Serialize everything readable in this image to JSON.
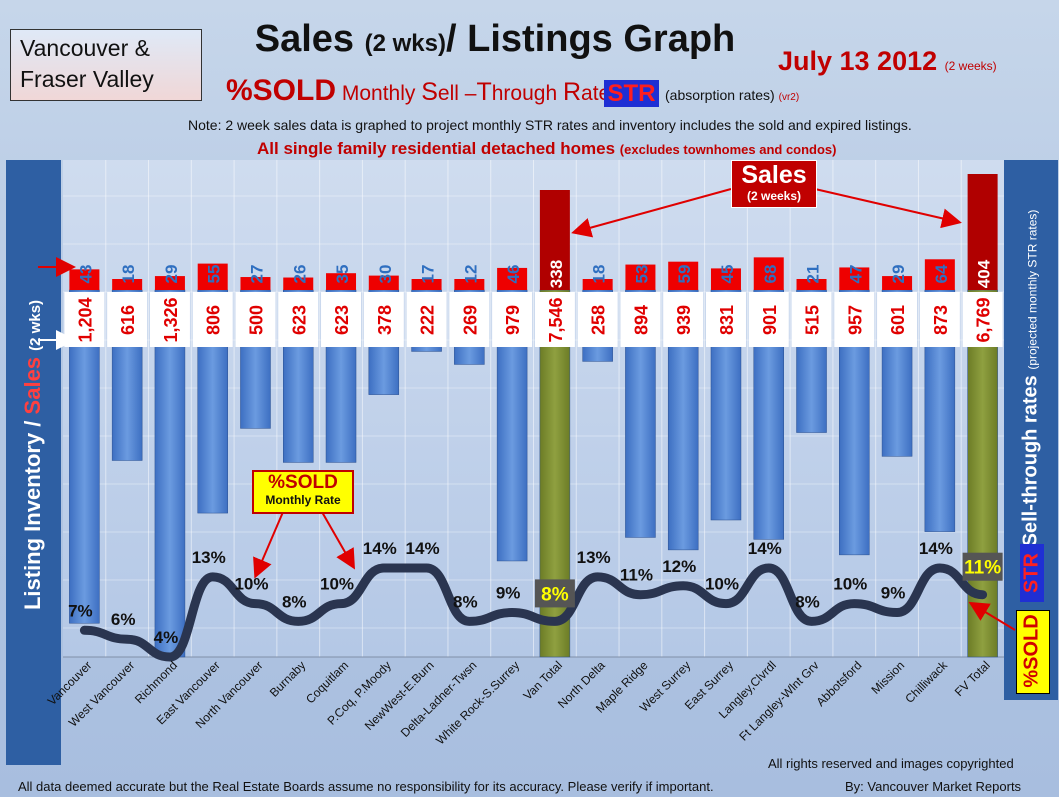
{
  "header": {
    "region_line1": "Vancouver &",
    "region_line2": "Fraser Valley",
    "title_main": "Sales",
    "title_paren": "(2 wks)",
    "title_rest": "/ Listings Graph",
    "date": "July 13 2012",
    "date_note": "(2 weeks)",
    "subtitle_pct": "%SOLD",
    "subtitle_a": "Monthly",
    "subtitle_S": "S",
    "subtitle_b": "ell –",
    "subtitle_T": "T",
    "subtitle_c": "hrough",
    "subtitle_R": "R",
    "subtitle_d": "ates",
    "str_badge": "STR",
    "absorption": "(absorption rates)",
    "absorption_ver": "(vr2)",
    "note": "Note: 2 week sales data is graphed to project monthly STR rates and inventory includes the sold and expired listings.",
    "scope": "All single family residential detached homes",
    "scope_note": "(excludes townhomes and condos)"
  },
  "axes": {
    "left_label_a": "Listing Inventory /",
    "left_label_b": "Sales",
    "left_label_c": "(2 wks)",
    "right_label": "Sell-through rates",
    "right_note": "(projected monthly STR rates)",
    "str_vertical": "STR",
    "sold_vertical": "%SOLD"
  },
  "callouts": {
    "sold_title": "%SOLD",
    "sold_sub": "Monthly Rate",
    "sales_title": "Sales",
    "sales_sub": "(2 weeks)"
  },
  "footer": {
    "copyright": "All rights reserved and  images copyrighted",
    "disclaimer": "All data deemed accurate but the Real Estate Boards assume no responsibility for its accuracy.  Please verify if important.",
    "byline": "By: Vancouver Market Reports"
  },
  "colors": {
    "inventory_bar": "#4a7fd0",
    "total_bar": "#7a8a30",
    "sales_bar": "#ee0000",
    "label_red": "#e00000",
    "label_blue": "#2f6fc0"
  },
  "chart_data": {
    "type": "bar",
    "categories": [
      "Vancouver",
      "West Vancouver",
      "Richmond",
      "East Vancouver",
      "North Vancouver",
      "Burnaby",
      "Coquitlam",
      "P.Coq, P.Moody",
      "NewWest-E.Burn",
      "Delta-Ladner-Twsn",
      "White Rock-S.Surrey",
      "Van Total",
      "North Delta",
      "Maple Ridge",
      "West Surrey",
      "East Surrey",
      "Langley,Clvrdl",
      "Ft Langley-Wlnt Grv",
      "Abbotsford",
      "Mission",
      "Chilliwack",
      "FV Total"
    ],
    "totals": [
      "Van Total",
      "FV Total"
    ],
    "series": [
      {
        "name": "Listing Inventory",
        "values": [
          1204,
          616,
          1326,
          806,
          500,
          623,
          623,
          378,
          222,
          269,
          979,
          7546,
          258,
          894,
          939,
          831,
          901,
          515,
          957,
          601,
          873,
          6769
        ],
        "labels": [
          "1,204",
          "616",
          "1,326",
          "806",
          "500",
          "623",
          "623",
          "378",
          "222",
          "269",
          "979",
          "7,546",
          "258",
          "894",
          "939",
          "831",
          "901",
          "515",
          "957",
          "601",
          "873",
          "6,769"
        ]
      },
      {
        "name": "Sales",
        "values": [
          43,
          18,
          29,
          55,
          27,
          26,
          35,
          30,
          17,
          12,
          46,
          338,
          18,
          53,
          59,
          45,
          68,
          21,
          47,
          29,
          64,
          404
        ]
      },
      {
        "name": "%SOLD",
        "values": [
          7,
          6,
          4,
          13,
          10,
          8,
          10,
          14,
          14,
          8,
          9,
          8,
          13,
          11,
          12,
          10,
          14,
          8,
          10,
          9,
          14,
          11
        ],
        "labels": [
          "7%",
          "6%",
          "4%",
          "13%",
          "10%",
          "8%",
          "10%",
          "14%",
          "14%",
          "8%",
          "9%",
          "8%",
          "13%",
          "11%",
          "12%",
          "10%",
          "14%",
          "8%",
          "10%",
          "9%",
          "14%",
          "11%"
        ]
      }
    ]
  }
}
